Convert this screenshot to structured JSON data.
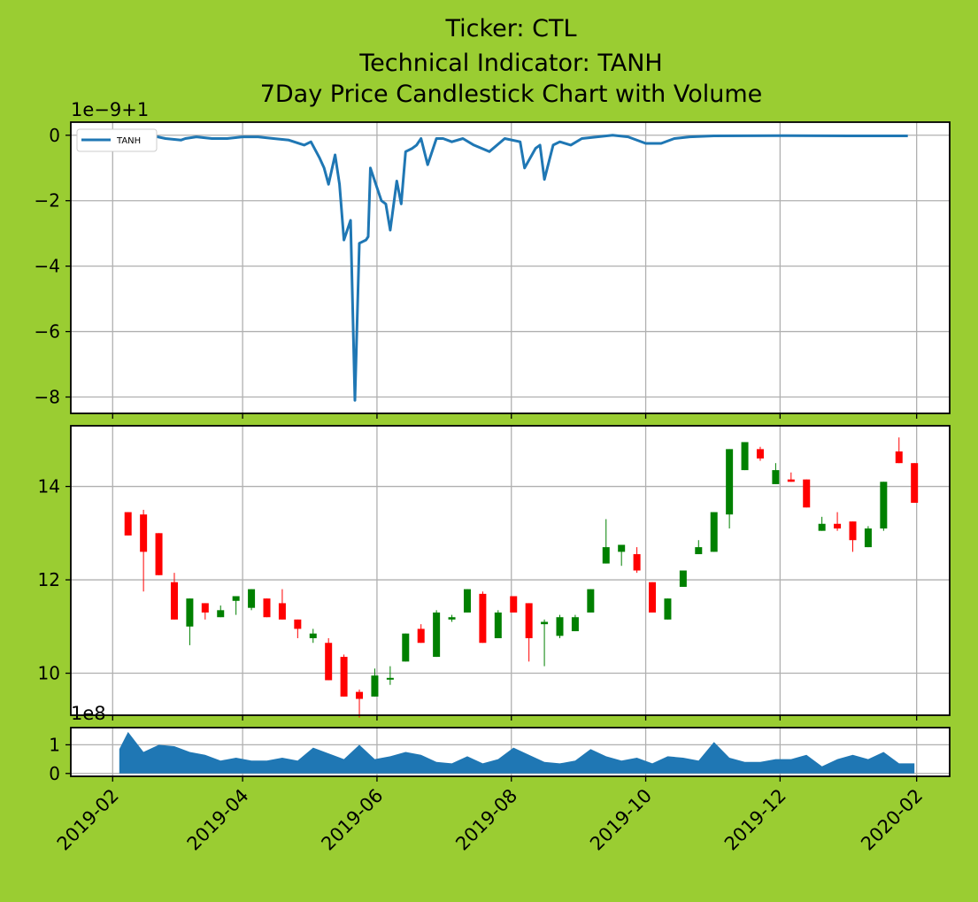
{
  "title": {
    "line1": "Ticker: CTL",
    "line2": "Technical Indicator: TANH",
    "line3": "7Day Price Candlestick Chart with Volume"
  },
  "colors": {
    "background": "#9acd32",
    "line": "#1f77b4",
    "up": "#008000",
    "down": "#ff0000",
    "volume": "#1f77b4",
    "grid": "#b0b0b0"
  },
  "chart_data": [
    {
      "type": "line",
      "panel": "indicator",
      "offset_label": "1e−9+1",
      "ylim": [
        -8.5,
        0.4
      ],
      "yticks": [
        0,
        -2,
        -4,
        -6,
        -8
      ],
      "ytick_labels": [
        "0",
        "−2",
        "−4",
        "−6",
        "−8"
      ],
      "grid": true,
      "legend_position": "upper-left",
      "series": [
        {
          "name": "TANH",
          "x": [
            "2019-02-04",
            "2019-02-11",
            "2019-02-18",
            "2019-02-25",
            "2019-03-04",
            "2019-03-06",
            "2019-03-11",
            "2019-03-18",
            "2019-03-25",
            "2019-04-01",
            "2019-04-08",
            "2019-04-15",
            "2019-04-22",
            "2019-04-29",
            "2019-05-02",
            "2019-05-06",
            "2019-05-08",
            "2019-05-10",
            "2019-05-13",
            "2019-05-15",
            "2019-05-17",
            "2019-05-20",
            "2019-05-22",
            "2019-05-24",
            "2019-05-27",
            "2019-05-28",
            "2019-05-29",
            "2019-06-03",
            "2019-06-05",
            "2019-06-07",
            "2019-06-10",
            "2019-06-12",
            "2019-06-14",
            "2019-06-17",
            "2019-06-19",
            "2019-06-21",
            "2019-06-24",
            "2019-06-28",
            "2019-07-01",
            "2019-07-05",
            "2019-07-10",
            "2019-07-15",
            "2019-07-22",
            "2019-07-29",
            "2019-08-05",
            "2019-08-07",
            "2019-08-12",
            "2019-08-14",
            "2019-08-16",
            "2019-08-20",
            "2019-08-23",
            "2019-08-28",
            "2019-09-02",
            "2019-09-09",
            "2019-09-16",
            "2019-09-23",
            "2019-10-01",
            "2019-10-08",
            "2019-10-14",
            "2019-10-21",
            "2019-11-01",
            "2019-12-01",
            "2020-01-01",
            "2020-01-28"
          ],
          "y": [
            0,
            0,
            0,
            -0.1,
            -0.15,
            -0.1,
            -0.05,
            -0.1,
            -0.1,
            -0.05,
            -0.05,
            -0.1,
            -0.15,
            -0.3,
            -0.2,
            -0.7,
            -1.0,
            -1.5,
            -0.6,
            -1.5,
            -3.2,
            -2.6,
            -8.1,
            -3.3,
            -3.2,
            -3.1,
            -1.0,
            -2.0,
            -2.1,
            -2.9,
            -1.4,
            -2.1,
            -0.5,
            -0.4,
            -0.3,
            -0.1,
            -0.9,
            -0.1,
            -0.1,
            -0.2,
            -0.1,
            -0.3,
            -0.5,
            -0.1,
            -0.2,
            -1.0,
            -0.4,
            -0.3,
            -1.35,
            -0.3,
            -0.2,
            -0.3,
            -0.1,
            -0.05,
            0,
            -0.05,
            -0.25,
            -0.25,
            -0.1,
            -0.05,
            -0.02,
            -0.01,
            -0.02,
            -0.02
          ]
        }
      ]
    },
    {
      "type": "candlestick",
      "panel": "price",
      "ylim": [
        9.1,
        15.3
      ],
      "yticks": [
        10,
        12,
        14
      ],
      "ytick_labels": [
        "10",
        "12",
        "14"
      ],
      "grid": true,
      "dates": [
        "2019-02-08",
        "2019-02-15",
        "2019-02-22",
        "2019-03-01",
        "2019-03-08",
        "2019-03-15",
        "2019-03-22",
        "2019-03-29",
        "2019-04-05",
        "2019-04-12",
        "2019-04-19",
        "2019-04-26",
        "2019-05-03",
        "2019-05-10",
        "2019-05-17",
        "2019-05-24",
        "2019-05-31",
        "2019-06-07",
        "2019-06-14",
        "2019-06-21",
        "2019-06-28",
        "2019-07-05",
        "2019-07-12",
        "2019-07-19",
        "2019-07-26",
        "2019-08-02",
        "2019-08-09",
        "2019-08-16",
        "2019-08-23",
        "2019-08-30",
        "2019-09-06",
        "2019-09-13",
        "2019-09-20",
        "2019-09-27",
        "2019-10-04",
        "2019-10-11",
        "2019-10-18",
        "2019-10-25",
        "2019-11-01",
        "2019-11-08",
        "2019-11-15",
        "2019-11-22",
        "2019-11-29",
        "2019-12-06",
        "2019-12-13",
        "2019-12-20",
        "2019-12-27",
        "2020-01-03",
        "2020-01-10",
        "2020-01-17",
        "2020-01-24",
        "2020-01-31"
      ],
      "open": [
        13.45,
        13.4,
        13.0,
        11.95,
        11.0,
        11.5,
        11.2,
        11.55,
        11.4,
        11.6,
        11.5,
        11.15,
        10.75,
        10.65,
        10.35,
        9.6,
        9.5,
        9.9,
        10.25,
        10.95,
        10.35,
        11.15,
        11.3,
        11.7,
        10.75,
        11.65,
        11.5,
        11.05,
        10.8,
        10.9,
        11.3,
        12.35,
        12.6,
        12.55,
        11.95,
        11.15,
        11.85,
        12.55,
        12.6,
        13.4,
        14.35,
        14.8,
        14.05,
        14.15,
        14.15,
        13.05,
        13.2,
        13.25,
        12.7,
        13.1,
        14.75,
        14.5
      ],
      "close": [
        12.95,
        12.6,
        12.1,
        11.15,
        11.6,
        11.3,
        11.35,
        11.65,
        11.8,
        11.2,
        11.15,
        10.95,
        10.85,
        9.85,
        9.5,
        9.45,
        9.95,
        9.9,
        10.85,
        10.65,
        11.3,
        11.2,
        11.8,
        10.65,
        11.3,
        11.3,
        10.75,
        11.1,
        11.2,
        11.2,
        11.8,
        12.7,
        12.75,
        12.2,
        11.3,
        11.6,
        12.2,
        12.7,
        13.45,
        14.8,
        14.95,
        14.6,
        14.35,
        14.1,
        13.55,
        13.2,
        13.1,
        12.85,
        13.1,
        14.1,
        14.5,
        13.65
      ],
      "high": [
        13.45,
        13.5,
        13.0,
        12.15,
        11.6,
        11.5,
        11.45,
        11.65,
        11.8,
        11.6,
        11.8,
        11.15,
        10.95,
        10.75,
        10.4,
        9.65,
        10.1,
        10.15,
        10.85,
        11.05,
        11.35,
        11.25,
        11.8,
        11.75,
        11.35,
        11.65,
        11.5,
        11.15,
        11.25,
        11.25,
        11.8,
        13.3,
        12.75,
        12.7,
        11.95,
        11.6,
        12.2,
        12.85,
        13.45,
        14.8,
        14.95,
        14.85,
        14.5,
        14.3,
        14.15,
        13.35,
        13.45,
        13.25,
        13.15,
        14.1,
        15.05,
        14.5
      ],
      "low": [
        12.95,
        11.75,
        12.1,
        11.15,
        10.6,
        11.15,
        11.2,
        11.25,
        11.35,
        11.2,
        11.15,
        10.75,
        10.65,
        9.85,
        9.5,
        9.05,
        9.5,
        9.75,
        10.25,
        10.65,
        10.35,
        11.1,
        11.3,
        10.65,
        10.75,
        11.3,
        10.25,
        10.15,
        10.75,
        10.9,
        11.3,
        12.35,
        12.3,
        12.15,
        11.3,
        11.15,
        11.85,
        12.55,
        12.6,
        13.1,
        14.35,
        14.55,
        14.05,
        14.1,
        13.55,
        13.05,
        13.05,
        12.6,
        12.7,
        13.05,
        14.5,
        13.65
      ]
    },
    {
      "type": "area",
      "panel": "volume",
      "offset_label": "1e8",
      "ylim": [
        -0.1,
        1.6
      ],
      "yticks": [
        0,
        1
      ],
      "ytick_labels": [
        "0",
        "1"
      ],
      "grid": true,
      "x": [
        "2019-02-04",
        "2019-02-08",
        "2019-02-15",
        "2019-02-22",
        "2019-03-01",
        "2019-03-08",
        "2019-03-15",
        "2019-03-22",
        "2019-03-29",
        "2019-04-05",
        "2019-04-12",
        "2019-04-19",
        "2019-04-26",
        "2019-05-03",
        "2019-05-10",
        "2019-05-17",
        "2019-05-24",
        "2019-05-31",
        "2019-06-07",
        "2019-06-14",
        "2019-06-21",
        "2019-06-28",
        "2019-07-05",
        "2019-07-12",
        "2019-07-19",
        "2019-07-26",
        "2019-08-02",
        "2019-08-09",
        "2019-08-16",
        "2019-08-23",
        "2019-08-30",
        "2019-09-06",
        "2019-09-13",
        "2019-09-20",
        "2019-09-27",
        "2019-10-04",
        "2019-10-11",
        "2019-10-18",
        "2019-10-25",
        "2019-11-01",
        "2019-11-08",
        "2019-11-15",
        "2019-11-22",
        "2019-11-29",
        "2019-12-06",
        "2019-12-13",
        "2019-12-20",
        "2019-12-27",
        "2020-01-03",
        "2020-01-10",
        "2020-01-17",
        "2020-01-24",
        "2020-01-31"
      ],
      "y": [
        0.85,
        1.45,
        0.75,
        1.0,
        0.95,
        0.75,
        0.65,
        0.45,
        0.55,
        0.45,
        0.45,
        0.55,
        0.45,
        0.9,
        0.7,
        0.5,
        1.0,
        0.5,
        0.6,
        0.75,
        0.65,
        0.4,
        0.35,
        0.6,
        0.35,
        0.5,
        0.9,
        0.65,
        0.4,
        0.35,
        0.45,
        0.85,
        0.6,
        0.45,
        0.55,
        0.35,
        0.6,
        0.55,
        0.45,
        1.1,
        0.55,
        0.4,
        0.4,
        0.5,
        0.5,
        0.65,
        0.25,
        0.5,
        0.65,
        0.5,
        0.75,
        0.35,
        0.35
      ]
    }
  ],
  "x_axis": {
    "ticks": [
      "2019-02",
      "2019-04",
      "2019-06",
      "2019-08",
      "2019-10",
      "2019-12",
      "2020-02"
    ],
    "range": [
      "2019-01-13",
      "2020-02-16"
    ]
  }
}
